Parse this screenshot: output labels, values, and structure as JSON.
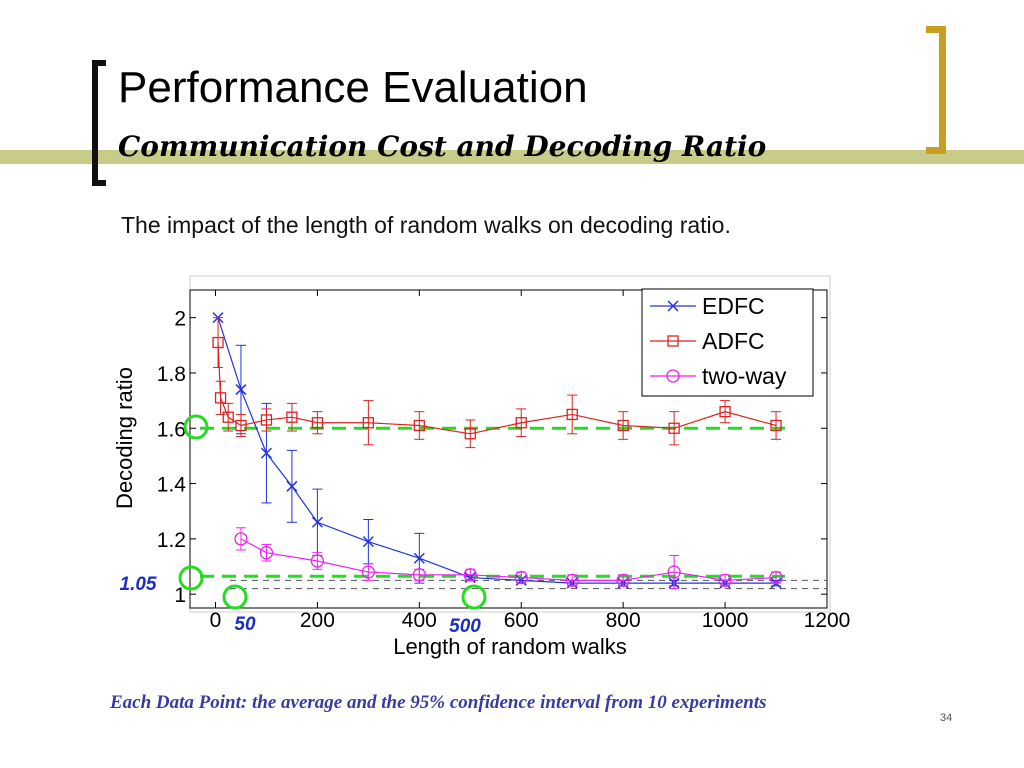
{
  "slide": {
    "title": "Performance Evaluation",
    "subtitle": "Communication Cost and Decoding Ratio",
    "caption": "The impact of the length of random walks on decoding ratio.",
    "footnote": "Each Data Point: the average and the 95% confidence interval from 10 experiments",
    "page_number": "34",
    "accent_color": "#c8a020",
    "stripe_color": "#c8cc88"
  },
  "annotations": {
    "y_mark_label": "1.05",
    "x_mark_50_label": "50",
    "x_mark_500_label": "500",
    "label_color": "#1a2fbf",
    "circle_color": "#22dd22",
    "dashed_line_color": "#22dd22"
  },
  "chart_data": {
    "type": "line",
    "xlabel": "Length of random walks",
    "ylabel": "Decoding ratio",
    "xlim": [
      -50,
      1200
    ],
    "ylim": [
      0.95,
      2.1
    ],
    "xticks": [
      0,
      200,
      400,
      600,
      800,
      1000,
      1200
    ],
    "yticks": [
      1,
      1.2,
      1.4,
      1.6,
      1.8,
      2
    ],
    "ytick_labels": [
      "1",
      "1.2",
      "1.4",
      "1.6",
      "1.8",
      "2"
    ],
    "grid": false,
    "legend_position": "top-right",
    "series": [
      {
        "name": "EDFC",
        "color": "#2233dd",
        "marker": "x",
        "x": [
          5,
          50,
          100,
          150,
          200,
          300,
          400,
          500,
          600,
          700,
          800,
          900,
          1000,
          1100
        ],
        "y": [
          2.0,
          1.74,
          1.51,
          1.39,
          1.26,
          1.19,
          1.13,
          1.06,
          1.05,
          1.04,
          1.04,
          1.04,
          1.04,
          1.04
        ],
        "err": [
          0.0,
          0.16,
          0.18,
          0.13,
          0.12,
          0.08,
          0.09,
          0.01,
          0.01,
          0.01,
          0.01,
          0.01,
          0.01,
          0.01
        ]
      },
      {
        "name": "ADFC",
        "color": "#dd2222",
        "marker": "square",
        "x": [
          5,
          10,
          25,
          50,
          100,
          150,
          200,
          300,
          400,
          500,
          600,
          700,
          800,
          900,
          1000,
          1100
        ],
        "y": [
          1.91,
          1.71,
          1.64,
          1.61,
          1.63,
          1.64,
          1.62,
          1.62,
          1.61,
          1.58,
          1.62,
          1.65,
          1.61,
          1.6,
          1.66,
          1.61
        ],
        "err": [
          0.09,
          0.06,
          0.05,
          0.04,
          0.04,
          0.05,
          0.04,
          0.08,
          0.05,
          0.05,
          0.05,
          0.07,
          0.05,
          0.06,
          0.04,
          0.05
        ]
      },
      {
        "name": "two-way",
        "color": "#ee22ee",
        "marker": "circle",
        "x": [
          50,
          100,
          200,
          300,
          400,
          500,
          600,
          700,
          800,
          900,
          1000,
          1100
        ],
        "y": [
          1.2,
          1.15,
          1.12,
          1.08,
          1.07,
          1.07,
          1.06,
          1.05,
          1.05,
          1.08,
          1.05,
          1.06
        ],
        "err": [
          0.04,
          0.03,
          0.03,
          0.03,
          0.02,
          0.02,
          0.02,
          0.02,
          0.02,
          0.06,
          0.02,
          0.02
        ]
      }
    ],
    "reference_lines": [
      {
        "y": 1.6,
        "style": "green-dashed"
      },
      {
        "y": 1.065,
        "style": "green-dashed"
      },
      {
        "y": 1.05,
        "style": "gray-dashed"
      },
      {
        "y": 1.02,
        "style": "gray-dashed"
      }
    ]
  }
}
